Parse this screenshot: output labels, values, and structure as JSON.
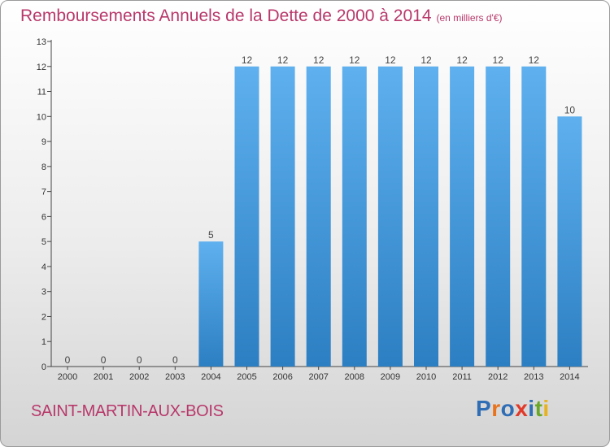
{
  "title": "Remboursements Annuels de la Dette de 2000 à 2014",
  "unit_label": "(en milliers d'€)",
  "city": "SAINT-MARTIN-AUX-BOIS",
  "logo": {
    "text": "Proxiti",
    "letters": [
      {
        "ch": "P",
        "color": "#2f6db5"
      },
      {
        "ch": "r",
        "color": "#e8731c"
      },
      {
        "ch": "o",
        "color": "#2f6db5"
      },
      {
        "ch": "x",
        "color": "#e23a2a"
      },
      {
        "ch": "i",
        "color": "#2f6db5"
      },
      {
        "ch": "t",
        "color": "#6aa728"
      },
      {
        "ch": "i",
        "color": "#e8b21c"
      }
    ]
  },
  "colors": {
    "bar_top": "#5eb0ee",
    "bar_bottom": "#2c7fc2",
    "accent": "#b8386a",
    "axis": "#444444"
  },
  "chart_data": {
    "type": "bar",
    "title": "Remboursements Annuels de la Dette de 2000 à 2014",
    "categories": [
      "2000",
      "2001",
      "2002",
      "2003",
      "2004",
      "2005",
      "2006",
      "2007",
      "2008",
      "2009",
      "2010",
      "2011",
      "2012",
      "2013",
      "2014"
    ],
    "values": [
      0,
      0,
      0,
      0,
      5,
      12,
      12,
      12,
      12,
      12,
      12,
      12,
      12,
      12,
      10
    ],
    "yticks": [
      0,
      1,
      2,
      3,
      4,
      5,
      6,
      7,
      8,
      9,
      10,
      11,
      12,
      13
    ],
    "ylim": [
      0,
      13
    ],
    "grid": false,
    "xlabel": "",
    "ylabel": ""
  }
}
